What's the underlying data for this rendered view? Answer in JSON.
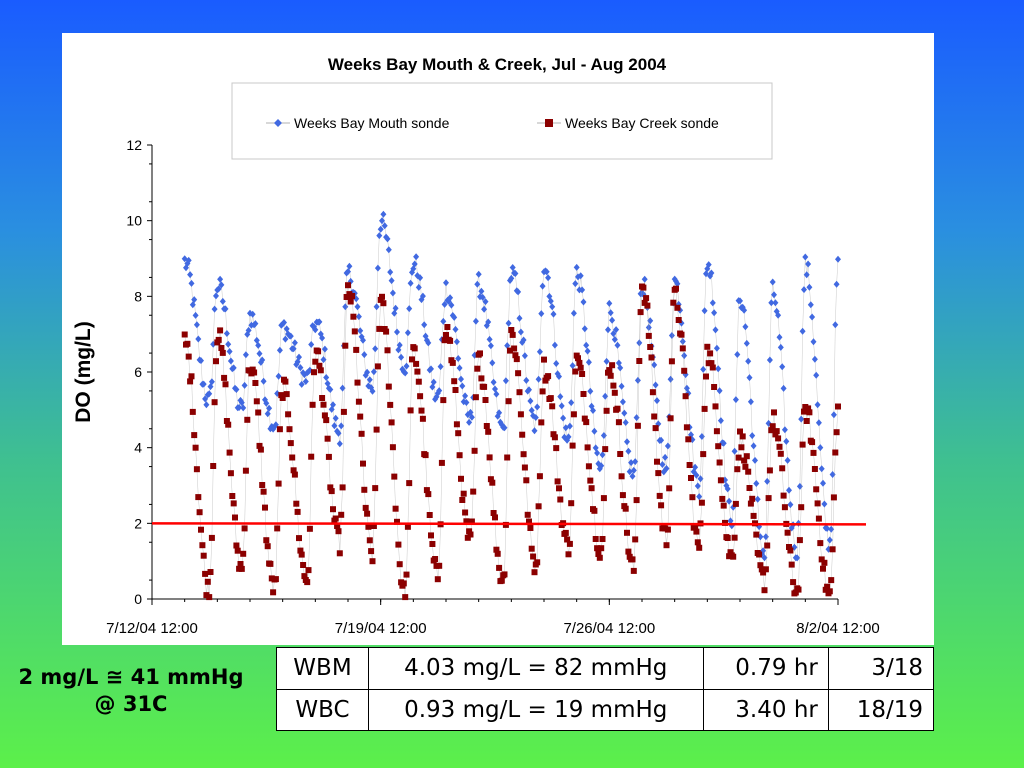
{
  "chart_data": {
    "type": "scatter",
    "title": "Weeks Bay Mouth & Creek, Jul - Aug 2004",
    "xlabel": "",
    "ylabel": "DO (mg/L)",
    "x_range": [
      "7/12/04 12:00",
      "8/2/04 12:00"
    ],
    "ylim": [
      0,
      12
    ],
    "y_ticks": [
      "0",
      "2",
      "4",
      "6",
      "8",
      "10",
      "12"
    ],
    "x_ticks": [
      "7/12/04 12:00",
      "7/19/04 12:00",
      "7/26/04 12:00",
      "8/2/04 12:00"
    ],
    "grid": false,
    "legend_position": "top",
    "reference_line": {
      "y": 2,
      "color": "#ff0000"
    },
    "series": [
      {
        "name": "Weeks Bay Mouth sonde",
        "color": "#4169e1",
        "marker": "diamond",
        "x_start": "7/13/04 12:00",
        "x_end": "8/2/04 12:00",
        "peaks": [
          [
            "7/13/04 12:00",
            8.9
          ],
          [
            "7/14/04 12:00",
            8.3
          ],
          [
            "7/15/04 12:00",
            7.5
          ],
          [
            "7/16/04 12:00",
            7.2
          ],
          [
            "7/17/04 12:00",
            7.3
          ],
          [
            "7/18/04 12:00",
            8.6
          ],
          [
            "7/19/04 12:00",
            10.0
          ],
          [
            "7/20/04 12:00",
            8.9
          ],
          [
            "7/21/04 12:00",
            8.2
          ],
          [
            "7/22/04 12:00",
            8.3
          ],
          [
            "7/23/04 12:00",
            8.6
          ],
          [
            "7/24/04 12:00",
            8.8
          ],
          [
            "7/25/04 12:00",
            8.6
          ],
          [
            "7/26/04 12:00",
            7.6
          ],
          [
            "7/27/04 12:00",
            8.3
          ],
          [
            "7/28/04 12:00",
            8.4
          ],
          [
            "7/29/04 12:00",
            8.9
          ],
          [
            "7/30/04 12:00",
            8.0
          ],
          [
            "7/31/04 12:00",
            8.1
          ],
          [
            "8/1/04 12:00",
            8.8
          ]
        ],
        "troughs": [
          5.2,
          5.0,
          4.6,
          5.8,
          4.4,
          5.6,
          6.2,
          5.3,
          4.7,
          4.5,
          4.6,
          4.2,
          3.4,
          3.3,
          3.5,
          3.0,
          2.2,
          1.2,
          1.3,
          1.5
        ]
      },
      {
        "name": "Weeks Bay Creek sonde",
        "color": "#8b0000",
        "marker": "square",
        "x_start": "7/13/04 12:00",
        "x_end": "8/2/04 12:00",
        "peaks": [
          [
            "7/13/04 12:00",
            6.8
          ],
          [
            "7/14/04 12:00",
            7.0
          ],
          [
            "7/15/04 12:00",
            6.2
          ],
          [
            "7/16/04 12:00",
            5.6
          ],
          [
            "7/17/04 12:00",
            6.5
          ],
          [
            "7/18/04 12:00",
            8.2
          ],
          [
            "7/19/04 12:00",
            7.8
          ],
          [
            "7/20/04 12:00",
            6.5
          ],
          [
            "7/21/04 12:00",
            7.1
          ],
          [
            "7/22/04 12:00",
            6.3
          ],
          [
            "7/23/04 12:00",
            7.0
          ],
          [
            "7/24/04 12:00",
            6.1
          ],
          [
            "7/25/04 12:00",
            6.3
          ],
          [
            "7/26/04 12:00",
            6.2
          ],
          [
            "7/27/04 12:00",
            8.3
          ],
          [
            "7/28/04 12:00",
            8.0
          ],
          [
            "7/29/04 12:00",
            6.5
          ],
          [
            "7/30/04 12:00",
            4.2
          ],
          [
            "7/31/04 12:00",
            4.7
          ],
          [
            "8/1/04 12:00",
            5.0
          ]
        ],
        "troughs": [
          0.2,
          0.8,
          0.3,
          0.5,
          1.5,
          1.2,
          0.1,
          0.6,
          1.5,
          0.5,
          0.9,
          1.4,
          1.3,
          0.8,
          1.6,
          1.4,
          1.1,
          0.5,
          0.2,
          0.1
        ]
      }
    ]
  },
  "stats_table": {
    "rows": [
      [
        "WBM",
        "4.03 mg/L = 82 mmHg",
        "0.79 hr",
        "3/18"
      ],
      [
        "WBC",
        "0.93 mg/L = 19 mmHg",
        "3.40 hr",
        "18/19"
      ]
    ]
  },
  "note": {
    "line1": "2 mg/L ≅ 41 mmHg",
    "line2": "@ 31C"
  }
}
